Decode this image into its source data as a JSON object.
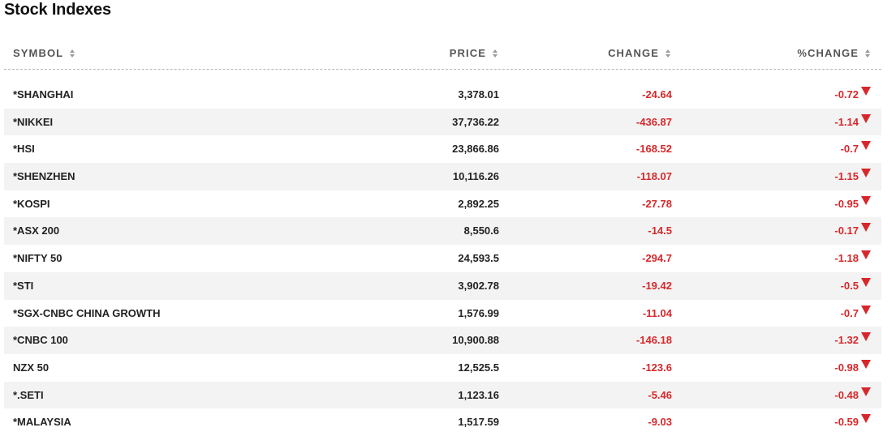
{
  "title": "Stock Indexes",
  "columns": {
    "symbol": "SYMBOL",
    "price": "PRICE",
    "change": "CHANGE",
    "pct_change": "%CHANGE"
  },
  "colors": {
    "negative": "#d6282b",
    "row_alt": "#f3f3f3"
  },
  "rows": [
    {
      "symbol": "*SHANGHAI",
      "price": "3,378.01",
      "change": "-24.64",
      "pct_change": "-0.72",
      "direction": "down"
    },
    {
      "symbol": "*NIKKEI",
      "price": "37,736.22",
      "change": "-436.87",
      "pct_change": "-1.14",
      "direction": "down"
    },
    {
      "symbol": "*HSI",
      "price": "23,866.86",
      "change": "-168.52",
      "pct_change": "-0.7",
      "direction": "down"
    },
    {
      "symbol": "*SHENZHEN",
      "price": "10,116.26",
      "change": "-118.07",
      "pct_change": "-1.15",
      "direction": "down"
    },
    {
      "symbol": "*KOSPI",
      "price": "2,892.25",
      "change": "-27.78",
      "pct_change": "-0.95",
      "direction": "down"
    },
    {
      "symbol": "*ASX 200",
      "price": "8,550.6",
      "change": "-14.5",
      "pct_change": "-0.17",
      "direction": "down"
    },
    {
      "symbol": "*NIFTY 50",
      "price": "24,593.5",
      "change": "-294.7",
      "pct_change": "-1.18",
      "direction": "down"
    },
    {
      "symbol": "*STI",
      "price": "3,902.78",
      "change": "-19.42",
      "pct_change": "-0.5",
      "direction": "down"
    },
    {
      "symbol": "*SGX-CNBC CHINA GROWTH",
      "price": "1,576.99",
      "change": "-11.04",
      "pct_change": "-0.7",
      "direction": "down"
    },
    {
      "symbol": "*CNBC 100",
      "price": "10,900.88",
      "change": "-146.18",
      "pct_change": "-1.32",
      "direction": "down"
    },
    {
      "symbol": "NZX 50",
      "price": "12,525.5",
      "change": "-123.6",
      "pct_change": "-0.98",
      "direction": "down"
    },
    {
      "symbol": "*.SETI",
      "price": "1,123.16",
      "change": "-5.46",
      "pct_change": "-0.48",
      "direction": "down"
    },
    {
      "symbol": "*MALAYSIA",
      "price": "1,517.59",
      "change": "-9.03",
      "pct_change": "-0.59",
      "direction": "down"
    }
  ]
}
